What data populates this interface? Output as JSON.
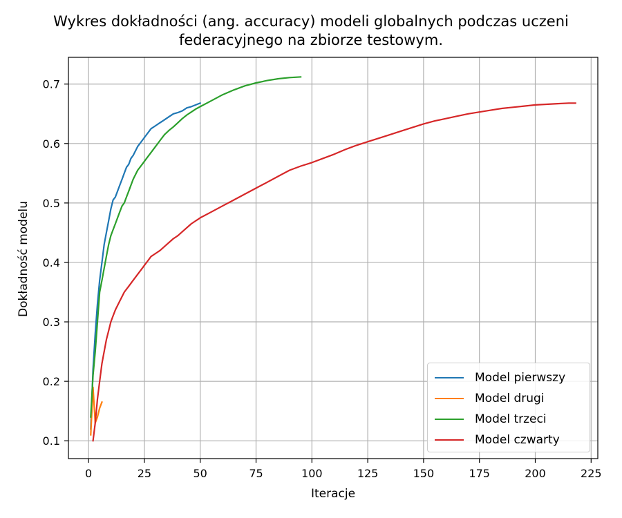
{
  "chart_data": {
    "type": "line",
    "title": "Wykres dokładności (ang. accuracy) modeli globalnych podczas uczeni\nfederacyjnego na zbiorze testowym.",
    "xlabel": "Iteracje",
    "ylabel": "Dokładność modelu",
    "xlim": [
      -9,
      228
    ],
    "ylim": [
      0.07,
      0.745
    ],
    "xticks": [
      0,
      25,
      50,
      75,
      100,
      125,
      150,
      175,
      200,
      225
    ],
    "yticks": [
      0.1,
      0.2,
      0.3,
      0.4,
      0.5,
      0.6,
      0.7
    ],
    "grid": true,
    "legend_position": "lower-right",
    "series": [
      {
        "name": "Model pierwszy",
        "color": "#1f77b4",
        "x": [
          1,
          2,
          3,
          4,
          5,
          6,
          7,
          8,
          9,
          10,
          11,
          12,
          13,
          14,
          15,
          16,
          17,
          18,
          19,
          20,
          22,
          24,
          26,
          28,
          30,
          32,
          34,
          36,
          38,
          40,
          42,
          44,
          46,
          48,
          50
        ],
        "y": [
          0.12,
          0.22,
          0.28,
          0.33,
          0.37,
          0.4,
          0.43,
          0.45,
          0.47,
          0.49,
          0.505,
          0.51,
          0.52,
          0.53,
          0.54,
          0.55,
          0.56,
          0.565,
          0.575,
          0.58,
          0.595,
          0.605,
          0.615,
          0.625,
          0.63,
          0.635,
          0.64,
          0.645,
          0.65,
          0.652,
          0.655,
          0.66,
          0.662,
          0.665,
          0.668
        ]
      },
      {
        "name": "Model drugi",
        "color": "#ff7f0e",
        "x": [
          1,
          2,
          3,
          4,
          5,
          6
        ],
        "y": [
          0.11,
          0.19,
          0.13,
          0.14,
          0.155,
          0.165
        ]
      },
      {
        "name": "Model trzeci",
        "color": "#2ca02c",
        "x": [
          1,
          2,
          3,
          4,
          5,
          6,
          7,
          8,
          9,
          10,
          11,
          12,
          13,
          14,
          15,
          16,
          17,
          18,
          20,
          22,
          24,
          26,
          28,
          30,
          32,
          34,
          36,
          38,
          40,
          42,
          44,
          46,
          48,
          50,
          55,
          60,
          65,
          70,
          75,
          80,
          85,
          90,
          95
        ],
        "y": [
          0.14,
          0.21,
          0.25,
          0.3,
          0.35,
          0.37,
          0.39,
          0.41,
          0.43,
          0.445,
          0.455,
          0.465,
          0.475,
          0.485,
          0.495,
          0.5,
          0.51,
          0.52,
          0.54,
          0.555,
          0.565,
          0.575,
          0.585,
          0.595,
          0.605,
          0.615,
          0.622,
          0.628,
          0.635,
          0.642,
          0.648,
          0.653,
          0.658,
          0.662,
          0.672,
          0.682,
          0.69,
          0.697,
          0.702,
          0.706,
          0.709,
          0.711,
          0.712
        ]
      },
      {
        "name": "Model czwarty",
        "color": "#d62728",
        "x": [
          2,
          3,
          4,
          5,
          6,
          7,
          8,
          9,
          10,
          11,
          12,
          14,
          16,
          18,
          20,
          22,
          24,
          26,
          28,
          30,
          32,
          35,
          38,
          40,
          43,
          46,
          50,
          55,
          60,
          65,
          70,
          75,
          80,
          85,
          90,
          95,
          100,
          105,
          110,
          115,
          120,
          125,
          130,
          135,
          140,
          145,
          150,
          155,
          160,
          165,
          170,
          175,
          180,
          185,
          190,
          195,
          200,
          205,
          210,
          215,
          218
        ],
        "y": [
          0.1,
          0.13,
          0.17,
          0.2,
          0.23,
          0.25,
          0.27,
          0.285,
          0.3,
          0.31,
          0.32,
          0.335,
          0.35,
          0.36,
          0.37,
          0.38,
          0.39,
          0.4,
          0.41,
          0.415,
          0.42,
          0.43,
          0.44,
          0.445,
          0.455,
          0.465,
          0.475,
          0.485,
          0.495,
          0.505,
          0.515,
          0.525,
          0.535,
          0.545,
          0.555,
          0.562,
          0.568,
          0.575,
          0.582,
          0.59,
          0.597,
          0.603,
          0.609,
          0.615,
          0.621,
          0.627,
          0.633,
          0.638,
          0.642,
          0.646,
          0.65,
          0.653,
          0.656,
          0.659,
          0.661,
          0.663,
          0.665,
          0.666,
          0.667,
          0.668,
          0.668
        ]
      }
    ]
  }
}
